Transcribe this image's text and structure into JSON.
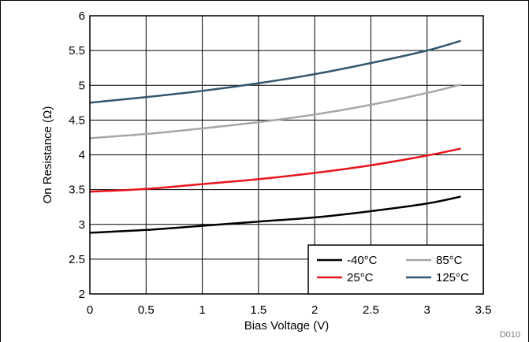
{
  "chart_data": {
    "type": "line",
    "title": "",
    "xlabel": "Bias Voltage (V)",
    "ylabel": "On Resistance (Ω)",
    "xlim": [
      0,
      3.5
    ],
    "ylim": [
      2,
      6
    ],
    "xticks": [
      0,
      0.5,
      1,
      1.5,
      2,
      2.5,
      3,
      3.5
    ],
    "xtick_labels": [
      "0",
      "0.5",
      "1",
      "1.5",
      "2",
      "2.5",
      "3",
      "3.5"
    ],
    "yticks": [
      2,
      2.5,
      3,
      3.5,
      4,
      4.5,
      5,
      5.5,
      6
    ],
    "ytick_labels": [
      "2",
      "2.5",
      "3",
      "3.5",
      "4",
      "4.5",
      "5",
      "5.5",
      "6"
    ],
    "grid": true,
    "legend_position": "bottom-right",
    "figure_id": "D010",
    "x": [
      0,
      0.5,
      1,
      1.5,
      2,
      2.5,
      3,
      3.3
    ],
    "series": [
      {
        "name": "-40°C",
        "color": "#000000",
        "values": [
          2.88,
          2.92,
          2.98,
          3.04,
          3.1,
          3.19,
          3.3,
          3.4
        ]
      },
      {
        "name": "25°C",
        "color": "#e8141c",
        "values": [
          3.47,
          3.51,
          3.58,
          3.65,
          3.74,
          3.85,
          3.99,
          4.09
        ]
      },
      {
        "name": "85°C",
        "color": "#a6a6a6",
        "values": [
          4.24,
          4.3,
          4.38,
          4.47,
          4.58,
          4.72,
          4.89,
          5.01
        ]
      },
      {
        "name": "125°C",
        "color": "#33576e",
        "values": [
          4.75,
          4.83,
          4.92,
          5.03,
          5.16,
          5.32,
          5.5,
          5.64
        ]
      }
    ]
  }
}
